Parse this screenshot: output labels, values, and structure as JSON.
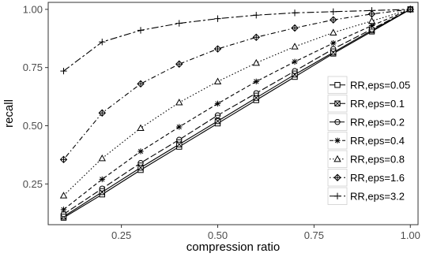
{
  "chart_data": {
    "type": "line",
    "title": "",
    "xlabel": "compression ratio",
    "ylabel": "recall",
    "xlim": [
      0.06,
      1.02
    ],
    "ylim": [
      0.075,
      1.03
    ],
    "x_ticks": [
      {
        "value": 0.25,
        "label": "0.25"
      },
      {
        "value": 0.5,
        "label": "0.50"
      },
      {
        "value": 0.75,
        "label": "0.75"
      },
      {
        "value": 1.0,
        "label": "1.00"
      }
    ],
    "y_ticks": [
      {
        "value": 0.25,
        "label": "0.25"
      },
      {
        "value": 0.5,
        "label": "0.50"
      },
      {
        "value": 0.75,
        "label": "0.75"
      },
      {
        "value": 1.0,
        "label": "1.00"
      }
    ],
    "grid": "off",
    "legend_position": "right",
    "x": [
      0.1,
      0.2,
      0.3,
      0.4,
      0.5,
      0.6,
      0.7,
      0.8,
      0.9,
      1.0
    ],
    "series": [
      {
        "name": "RR,eps=0.05",
        "marker": "square",
        "dash": "solid",
        "values": [
          0.105,
          0.205,
          0.31,
          0.41,
          0.51,
          0.61,
          0.71,
          0.81,
          0.905,
          1.0
        ]
      },
      {
        "name": "RR,eps=0.1",
        "marker": "square-cross",
        "dash": "solid",
        "values": [
          0.11,
          0.215,
          0.32,
          0.42,
          0.52,
          0.62,
          0.72,
          0.815,
          0.91,
          1.0
        ]
      },
      {
        "name": "RR,eps=0.2",
        "marker": "circle-dash",
        "dash": "longdash",
        "values": [
          0.12,
          0.23,
          0.34,
          0.44,
          0.545,
          0.64,
          0.735,
          0.83,
          0.915,
          1.0
        ]
      },
      {
        "name": "RR,eps=0.4",
        "marker": "asterisk",
        "dash": "dashed",
        "values": [
          0.14,
          0.27,
          0.39,
          0.495,
          0.595,
          0.69,
          0.775,
          0.855,
          0.93,
          1.0
        ]
      },
      {
        "name": "RR,eps=0.8",
        "marker": "triangle",
        "dash": "dotted",
        "values": [
          0.2,
          0.36,
          0.49,
          0.6,
          0.69,
          0.77,
          0.84,
          0.9,
          0.95,
          1.0
        ]
      },
      {
        "name": "RR,eps=1.6",
        "marker": "diamond-plus",
        "dash": "dotdash",
        "values": [
          0.355,
          0.555,
          0.68,
          0.765,
          0.83,
          0.88,
          0.92,
          0.955,
          0.98,
          1.0
        ]
      },
      {
        "name": "RR,eps=3.2",
        "marker": "plus",
        "dash": "twodash",
        "values": [
          0.735,
          0.86,
          0.91,
          0.94,
          0.96,
          0.975,
          0.985,
          0.99,
          0.995,
          1.0
        ]
      }
    ]
  }
}
